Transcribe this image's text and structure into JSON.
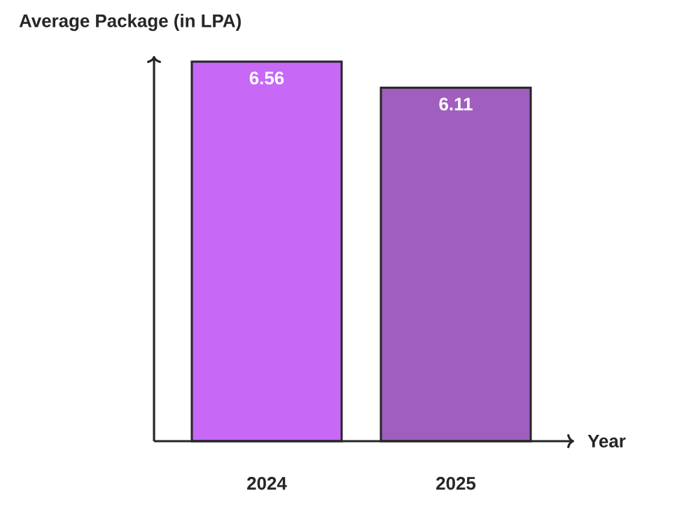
{
  "chart_data": {
    "type": "bar",
    "ylabel": "Average Package (in LPA)",
    "xlabel": "Year",
    "categories": [
      "2024",
      "2025"
    ],
    "values": [
      6.56,
      6.11
    ],
    "colors": [
      "#c768f7",
      "#a05ebf"
    ],
    "data_labels": true
  }
}
